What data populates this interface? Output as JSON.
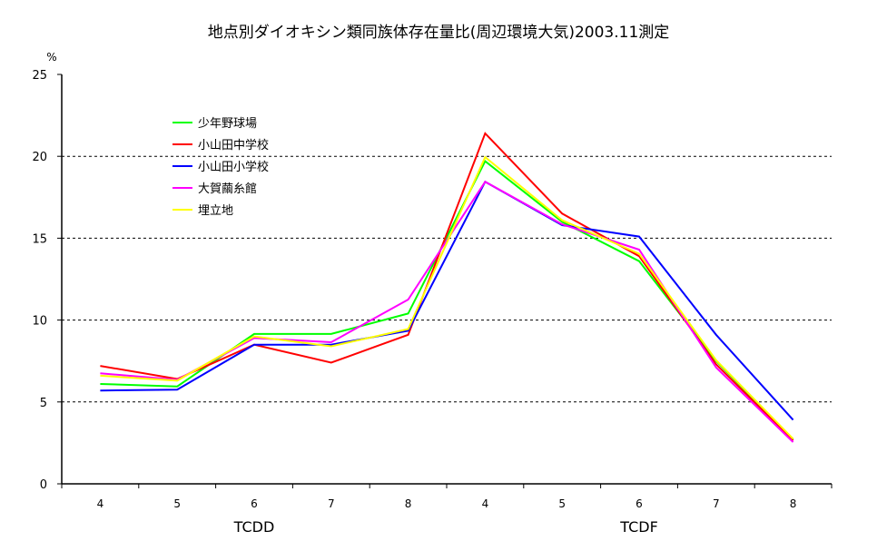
{
  "chart_data": {
    "type": "line",
    "title": "地点別ダイオキシン類同族体存在量比(周辺環境大気)2003.11測定",
    "ylabel": "%",
    "ylim": [
      0,
      25
    ],
    "yticks": [
      0,
      5,
      10,
      15,
      20,
      25
    ],
    "grid": "horizontal dashed",
    "legend_position": "top-left",
    "categories": [
      "4",
      "5",
      "6",
      "7",
      "8",
      "4",
      "5",
      "6",
      "7",
      "8"
    ],
    "groups": [
      {
        "label": "TCDD",
        "count": 5
      },
      {
        "label": "TCDF",
        "count": 5
      }
    ],
    "series": [
      {
        "name": "少年野球場",
        "color": "#00ff00",
        "values": [
          6.1,
          5.95,
          9.15,
          9.15,
          10.4,
          19.7,
          16.0,
          13.6,
          7.5,
          2.7
        ]
      },
      {
        "name": "小山田中学校",
        "color": "#ff0000",
        "values": [
          7.2,
          6.4,
          8.5,
          7.4,
          9.1,
          21.4,
          16.5,
          13.9,
          7.3,
          2.65
        ]
      },
      {
        "name": "小山田小学校",
        "color": "#0000ff",
        "values": [
          5.7,
          5.75,
          8.5,
          8.5,
          9.35,
          18.45,
          15.8,
          15.1,
          9.1,
          3.9
        ]
      },
      {
        "name": "大賀繭糸館",
        "color": "#ff00ff",
        "values": [
          6.75,
          6.35,
          8.9,
          8.65,
          11.25,
          18.45,
          15.85,
          14.3,
          7.1,
          2.55
        ]
      },
      {
        "name": "埋立地",
        "color": "#ffff00",
        "values": [
          6.6,
          6.3,
          9.0,
          8.4,
          9.45,
          19.95,
          16.1,
          14.05,
          7.55,
          2.75
        ]
      }
    ]
  }
}
